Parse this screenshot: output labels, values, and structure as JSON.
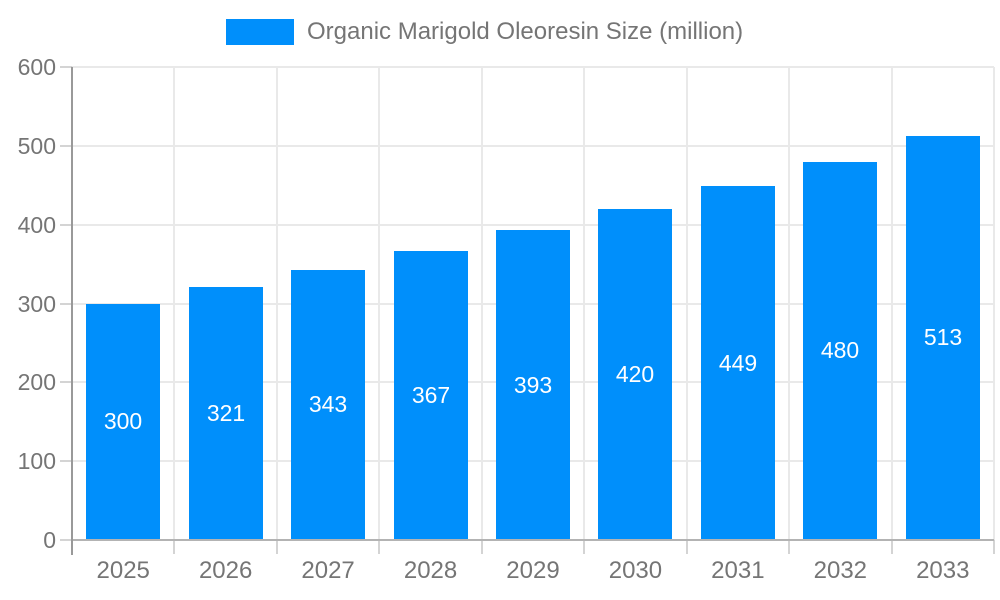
{
  "chart_data": {
    "type": "bar",
    "title": "Organic Marigold Oleoresin Size (million)",
    "legend_label": "Organic Marigold Oleoresin Size (million)",
    "legend_position": "top",
    "categories": [
      "2025",
      "2026",
      "2027",
      "2028",
      "2029",
      "2030",
      "2031",
      "2032",
      "2033"
    ],
    "series": [
      {
        "name": "Organic Marigold Oleoresin Size (million)",
        "values": [
          300,
          321,
          343,
          367,
          393,
          420,
          449,
          480,
          513
        ]
      }
    ],
    "xlabel": "",
    "ylabel": "",
    "ylim": [
      0,
      600
    ],
    "ytick_step": 100,
    "yticks": [
      0,
      100,
      200,
      300,
      400,
      500,
      600
    ],
    "grid": true,
    "bar_labels_visible": true,
    "colors": {
      "bar": "#008FFB",
      "bar_label_text": "#FFFFFF",
      "axis_text": "#757575",
      "grid_line": "#E9E9E9",
      "axis_line_y": "#999999",
      "axis_line_x": "#B3B3B3",
      "tick_line": "#D4D4D4",
      "background": "#FFFFFF"
    }
  }
}
